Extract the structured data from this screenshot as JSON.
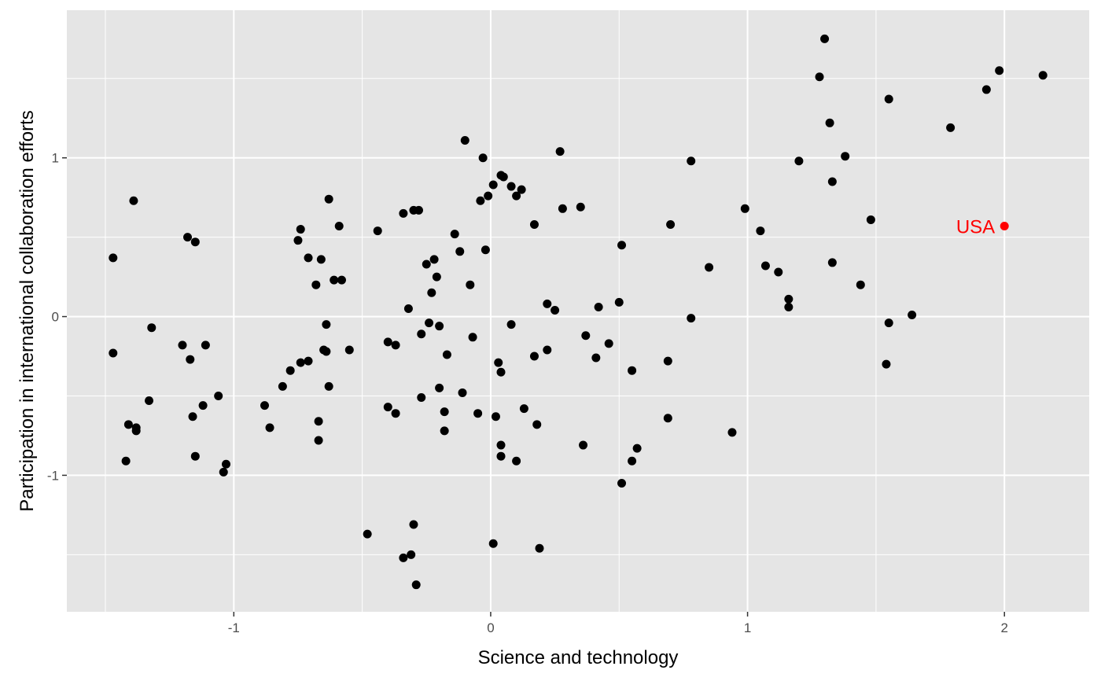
{
  "chart_data": {
    "type": "scatter",
    "title": "",
    "xlabel": "Science and technology",
    "ylabel": "Participation in international collaboration efforts",
    "xlim": [
      -1.65,
      2.33
    ],
    "ylim": [
      -1.86,
      1.93
    ],
    "x_ticks": [
      -1,
      0,
      1,
      2
    ],
    "y_ticks": [
      -1,
      0,
      1
    ],
    "x_tick_labels": [
      "-1",
      "0",
      "1",
      "2"
    ],
    "y_tick_labels": [
      "-1",
      "0",
      "1"
    ],
    "grid": true,
    "background": "#e5e5e5",
    "grid_color": "#ffffff",
    "point_color": "#000000",
    "highlight_color": "#ff0000",
    "annotation": {
      "label": "USA",
      "x": 2.0,
      "y": 0.57
    },
    "points": [
      [
        -1.47,
        0.37
      ],
      [
        -1.47,
        -0.23
      ],
      [
        -1.39,
        0.73
      ],
      [
        -1.41,
        -0.68
      ],
      [
        -1.42,
        -0.91
      ],
      [
        -1.38,
        -0.7
      ],
      [
        -1.38,
        -0.72
      ],
      [
        -1.33,
        -0.53
      ],
      [
        -1.32,
        -0.07
      ],
      [
        -1.2,
        -0.18
      ],
      [
        -1.18,
        0.5
      ],
      [
        -1.17,
        -0.27
      ],
      [
        -1.15,
        0.47
      ],
      [
        -1.16,
        -0.63
      ],
      [
        -1.15,
        -0.88
      ],
      [
        -1.12,
        -0.56
      ],
      [
        -1.11,
        -0.18
      ],
      [
        -1.06,
        -0.5
      ],
      [
        -1.04,
        -0.98
      ],
      [
        -1.03,
        -0.93
      ],
      [
        -0.88,
        -0.56
      ],
      [
        -0.86,
        -0.7
      ],
      [
        -0.81,
        -0.44
      ],
      [
        -0.78,
        -0.34
      ],
      [
        -0.75,
        0.48
      ],
      [
        -0.74,
        0.55
      ],
      [
        -0.74,
        -0.29
      ],
      [
        -0.71,
        0.37
      ],
      [
        -0.71,
        -0.28
      ],
      [
        -0.68,
        0.2
      ],
      [
        -0.67,
        -0.66
      ],
      [
        -0.67,
        -0.78
      ],
      [
        -0.66,
        0.36
      ],
      [
        -0.65,
        -0.21
      ],
      [
        -0.64,
        -0.22
      ],
      [
        -0.64,
        -0.05
      ],
      [
        -0.63,
        0.74
      ],
      [
        -0.63,
        -0.44
      ],
      [
        -0.61,
        0.23
      ],
      [
        -0.59,
        0.57
      ],
      [
        -0.58,
        0.23
      ],
      [
        -0.55,
        -0.21
      ],
      [
        -0.48,
        -1.37
      ],
      [
        -0.44,
        0.54
      ],
      [
        -0.4,
        -0.16
      ],
      [
        -0.4,
        -0.57
      ],
      [
        -0.37,
        -0.18
      ],
      [
        -0.37,
        -0.61
      ],
      [
        -0.34,
        0.65
      ],
      [
        -0.34,
        -1.52
      ],
      [
        -0.32,
        0.05
      ],
      [
        -0.31,
        -1.5
      ],
      [
        -0.3,
        0.67
      ],
      [
        -0.3,
        -1.31
      ],
      [
        -0.29,
        -1.69
      ],
      [
        -0.28,
        0.67
      ],
      [
        -0.27,
        -0.11
      ],
      [
        -0.27,
        -0.51
      ],
      [
        -0.25,
        0.33
      ],
      [
        -0.24,
        -0.04
      ],
      [
        -0.23,
        0.15
      ],
      [
        -0.22,
        0.36
      ],
      [
        -0.21,
        0.25
      ],
      [
        -0.2,
        -0.06
      ],
      [
        -0.2,
        -0.45
      ],
      [
        -0.18,
        -0.6
      ],
      [
        -0.18,
        -0.72
      ],
      [
        -0.17,
        -0.24
      ],
      [
        -0.14,
        0.52
      ],
      [
        -0.12,
        0.41
      ],
      [
        -0.11,
        -0.48
      ],
      [
        -0.1,
        1.11
      ],
      [
        -0.08,
        0.2
      ],
      [
        -0.07,
        -0.13
      ],
      [
        -0.05,
        -0.61
      ],
      [
        -0.04,
        0.73
      ],
      [
        -0.03,
        1.0
      ],
      [
        -0.02,
        0.42
      ],
      [
        -0.01,
        0.76
      ],
      [
        0.01,
        0.83
      ],
      [
        0.01,
        -1.43
      ],
      [
        0.02,
        -0.63
      ],
      [
        0.03,
        -0.29
      ],
      [
        0.04,
        0.89
      ],
      [
        0.04,
        -0.35
      ],
      [
        0.04,
        -0.81
      ],
      [
        0.04,
        -0.88
      ],
      [
        0.05,
        0.88
      ],
      [
        0.08,
        0.82
      ],
      [
        0.08,
        -0.05
      ],
      [
        0.1,
        0.76
      ],
      [
        0.1,
        -0.91
      ],
      [
        0.12,
        0.8
      ],
      [
        0.13,
        -0.58
      ],
      [
        0.17,
        0.58
      ],
      [
        0.17,
        -0.25
      ],
      [
        0.18,
        -0.68
      ],
      [
        0.19,
        -1.46
      ],
      [
        0.22,
        0.08
      ],
      [
        0.22,
        -0.21
      ],
      [
        0.25,
        0.04
      ],
      [
        0.27,
        1.04
      ],
      [
        0.28,
        0.68
      ],
      [
        0.35,
        0.69
      ],
      [
        0.36,
        -0.81
      ],
      [
        0.37,
        -0.12
      ],
      [
        0.41,
        -0.26
      ],
      [
        0.42,
        0.06
      ],
      [
        0.46,
        -0.17
      ],
      [
        0.5,
        0.09
      ],
      [
        0.51,
        0.45
      ],
      [
        0.51,
        -1.05
      ],
      [
        0.55,
        -0.34
      ],
      [
        0.55,
        -0.91
      ],
      [
        0.57,
        -0.83
      ],
      [
        0.69,
        -0.28
      ],
      [
        0.69,
        -0.64
      ],
      [
        0.7,
        0.58
      ],
      [
        0.78,
        0.98
      ],
      [
        0.78,
        -0.01
      ],
      [
        0.85,
        0.31
      ],
      [
        0.94,
        -0.73
      ],
      [
        0.99,
        0.68
      ],
      [
        1.05,
        0.54
      ],
      [
        1.07,
        0.32
      ],
      [
        1.12,
        0.28
      ],
      [
        1.16,
        0.11
      ],
      [
        1.16,
        0.06
      ],
      [
        1.2,
        0.98
      ],
      [
        1.28,
        1.51
      ],
      [
        1.3,
        1.75
      ],
      [
        1.32,
        1.22
      ],
      [
        1.33,
        0.85
      ],
      [
        1.33,
        0.34
      ],
      [
        1.38,
        1.01
      ],
      [
        1.44,
        0.2
      ],
      [
        1.48,
        0.61
      ],
      [
        1.54,
        -0.3
      ],
      [
        1.55,
        1.37
      ],
      [
        1.55,
        -0.04
      ],
      [
        1.64,
        0.01
      ],
      [
        1.79,
        1.19
      ],
      [
        1.93,
        1.43
      ],
      [
        1.98,
        1.55
      ],
      [
        2.15,
        1.52
      ]
    ]
  }
}
